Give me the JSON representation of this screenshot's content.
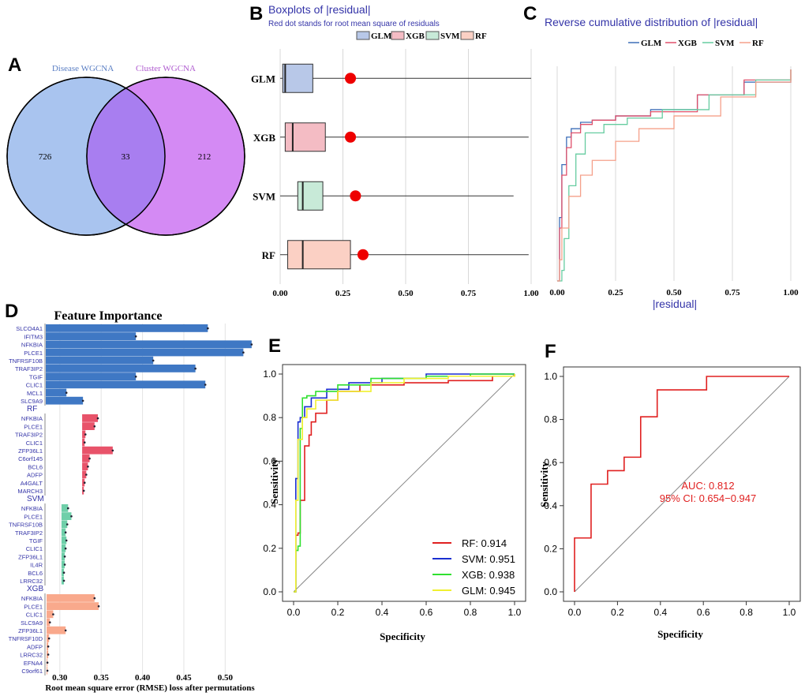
{
  "panels": {
    "A": {
      "letter": "A",
      "set1_label": "Disease WGCNA",
      "set2_label": "Cluster WGCNA",
      "only1": "726",
      "both": "33",
      "only2": "212",
      "color1": "#a9c4ef",
      "color2": "#d48af4",
      "overlap_color": "#a87ef0"
    },
    "B": {
      "letter": "B",
      "title": "Boxplots of |residual|",
      "subtitle": "Red dot stands for root mean square of residuals",
      "legend": [
        "GLM",
        "XGB",
        "SVM",
        "RF"
      ],
      "categories": [
        "GLM",
        "XGB",
        "SVM",
        "RF"
      ],
      "xticks": [
        "0.00",
        "0.25",
        "0.50",
        "0.75",
        "1.00"
      ],
      "xlim": [
        0,
        1
      ],
      "boxes": [
        {
          "name": "GLM",
          "whisk_lo": 0.0,
          "q1": 0.01,
          "median": 0.02,
          "q3": 0.13,
          "whisk_hi": 1.0,
          "rmse": 0.28,
          "fill": "#b8c8e8",
          "stroke": "#4a6aa0"
        },
        {
          "name": "XGB",
          "whisk_lo": 0.0,
          "q1": 0.02,
          "median": 0.05,
          "q3": 0.18,
          "whisk_hi": 0.99,
          "rmse": 0.28,
          "fill": "#f4bcc4",
          "stroke": "#c06070"
        },
        {
          "name": "SVM",
          "whisk_lo": 0.0,
          "q1": 0.07,
          "median": 0.09,
          "q3": 0.17,
          "whisk_hi": 0.93,
          "rmse": 0.3,
          "fill": "#c8ead8",
          "stroke": "#60a080"
        },
        {
          "name": "RF",
          "whisk_lo": 0.0,
          "q1": 0.03,
          "median": 0.09,
          "q3": 0.28,
          "whisk_hi": 0.99,
          "rmse": 0.33,
          "fill": "#fbd0c4",
          "stroke": "#c08070"
        }
      ]
    },
    "C": {
      "letter": "C",
      "title": "Reverse cumulative distribution of |residual|",
      "legend": [
        "GLM",
        "XGB",
        "SVM",
        "RF"
      ],
      "xlabel": "|residual|",
      "xticks": [
        "0.00",
        "0.25",
        "0.50",
        "0.75",
        "1.00"
      ],
      "colors": {
        "GLM": "#3d6fb8",
        "XGB": "#e0506a",
        "SVM": "#66cca0",
        "RF": "#f5a08a"
      }
    },
    "D": {
      "letter": "D",
      "title": "Feature Importance",
      "xlabel": "Root mean square error (RMSE) loss after permutations",
      "xticks": [
        "0.30",
        "0.35",
        "0.40",
        "0.45",
        "0.50"
      ],
      "xlim": [
        0.283,
        0.535
      ],
      "groups": [
        {
          "label": "",
          "color": "#3f78c4",
          "base": 0.283,
          "features": [
            "SLCO4A1",
            "IFITM3",
            "NFKBIA",
            "PLCE1",
            "TNFRSF10B",
            "TRAF3IP2",
            "TGIF",
            "CLIC1",
            "MCL1",
            "SLC9A9"
          ],
          "values": [
            0.479,
            0.392,
            0.532,
            0.522,
            0.413,
            0.464,
            0.392,
            0.476,
            0.308,
            0.328
          ]
        },
        {
          "label": "RF",
          "color": "#e8536a",
          "base": 0.327,
          "features": [
            "NFKBIA",
            "PLCE1",
            "TRAF3IP2",
            "CLIC1",
            "ZFP36L1",
            "C6orf145",
            "BCL6",
            "ADFP",
            "A4GALT",
            "MARCH3"
          ],
          "values": [
            0.346,
            0.342,
            0.331,
            0.33,
            0.364,
            0.336,
            0.334,
            0.332,
            0.33,
            0.329
          ]
        },
        {
          "label": "SVM",
          "color": "#6fcfa9",
          "base": 0.302,
          "features": [
            "NFKBIA",
            "PLCE1",
            "TNFRSF10B",
            "TRAF3IP2",
            "TGIF",
            "CLIC1",
            "ZFP36L1",
            "IL4R",
            "BCL6",
            "LRRC32"
          ],
          "values": [
            0.31,
            0.314,
            0.309,
            0.307,
            0.308,
            0.307,
            0.306,
            0.306,
            0.305,
            0.305
          ]
        },
        {
          "label": "XGB",
          "color": "#f9a98c",
          "base": 0.284,
          "features": [
            "NFKBIA",
            "PLCE1",
            "CLIC1",
            "SLC9A9",
            "ZFP36L1",
            "TNFRSF10D",
            "ADFP",
            "LRRC32",
            "EFNA4",
            "C9orf61"
          ],
          "values": [
            0.342,
            0.347,
            0.292,
            0.288,
            0.307,
            0.287,
            0.286,
            0.286,
            0.285,
            0.285
          ]
        }
      ]
    },
    "E": {
      "letter": "E",
      "ylabel": "Sensitivity",
      "xlabel": "Specificity",
      "xticks": [
        "0.0",
        "0.2",
        "0.4",
        "0.6",
        "0.8",
        "1.0"
      ],
      "yticks": [
        "0.0",
        "0.2",
        "0.4",
        "0.6",
        "0.8",
        "1.0"
      ],
      "legend": [
        {
          "label": "RF: 0.914",
          "color": "#e02020"
        },
        {
          "label": "SVM: 0.951",
          "color": "#1a2fd0"
        },
        {
          "label": "XGB: 0.938",
          "color": "#30e030"
        },
        {
          "label": "GLM: 0.945",
          "color": "#f0f030"
        }
      ]
    },
    "F": {
      "letter": "F",
      "ylabel": "Sensitivity",
      "xlabel": "Specificity",
      "xticks": [
        "0.0",
        "0.2",
        "0.4",
        "0.6",
        "0.8",
        "1.0"
      ],
      "yticks": [
        "0.0",
        "0.2",
        "0.4",
        "0.6",
        "0.8",
        "1.0"
      ],
      "auc_text": "AUC: 0.812",
      "ci_text": "95% CI: 0.654−0.947",
      "line_color": "#e02020"
    }
  },
  "chart_data": [
    {
      "type": "venn",
      "sets": [
        "Disease WGCNA",
        "Cluster WGCNA"
      ],
      "values": {
        "Disease WGCNA only": 726,
        "both": 33,
        "Cluster WGCNA only": 212
      }
    },
    {
      "type": "boxplot",
      "title": "Boxplots of |residual|",
      "categories": [
        "GLM",
        "XGB",
        "SVM",
        "RF"
      ],
      "xlim": [
        0,
        1
      ],
      "rmse": {
        "GLM": 0.28,
        "XGB": 0.28,
        "SVM": 0.3,
        "RF": 0.33
      }
    },
    {
      "type": "line",
      "title": "Reverse cumulative distribution of |residual|",
      "series": [
        {
          "name": "GLM",
          "x": [
            0.0,
            0.01,
            0.02,
            0.04,
            0.06,
            0.1,
            0.15,
            0.25,
            0.4,
            0.6,
            0.8,
            1.0
          ],
          "y": [
            0.0,
            0.3,
            0.55,
            0.68,
            0.72,
            0.75,
            0.76,
            0.78,
            0.81,
            0.88,
            0.94,
            1.0
          ]
        },
        {
          "name": "XGB",
          "x": [
            0.0,
            0.01,
            0.02,
            0.04,
            0.06,
            0.1,
            0.15,
            0.25,
            0.4,
            0.6,
            0.8,
            1.0
          ],
          "y": [
            0.0,
            0.25,
            0.5,
            0.63,
            0.7,
            0.74,
            0.76,
            0.78,
            0.8,
            0.88,
            0.95,
            1.0
          ]
        },
        {
          "name": "SVM",
          "x": [
            0.0,
            0.02,
            0.03,
            0.05,
            0.08,
            0.12,
            0.2,
            0.3,
            0.45,
            0.65,
            0.85,
            1.0
          ],
          "y": [
            0.0,
            0.05,
            0.2,
            0.45,
            0.6,
            0.7,
            0.74,
            0.77,
            0.81,
            0.88,
            0.95,
            1.0
          ]
        },
        {
          "name": "RF",
          "x": [
            0.0,
            0.01,
            0.02,
            0.05,
            0.1,
            0.15,
            0.25,
            0.35,
            0.5,
            0.7,
            0.85,
            1.0
          ],
          "y": [
            0.0,
            0.1,
            0.25,
            0.4,
            0.5,
            0.57,
            0.66,
            0.72,
            0.78,
            0.87,
            0.94,
            1.0
          ]
        }
      ]
    },
    {
      "type": "bar",
      "title": "Feature Importance",
      "xlabel": "Root mean square error (RMSE) loss after permutations",
      "groups": [
        "",
        "RF",
        "SVM",
        "XGB"
      ]
    },
    {
      "type": "line",
      "xlabel": "Specificity",
      "ylabel": "Sensitivity",
      "series": [
        {
          "name": "RF: 0.914",
          "x": [
            0,
            0.01,
            0.02,
            0.03,
            0.05,
            0.07,
            0.08,
            0.1,
            0.15,
            0.2,
            0.3,
            0.5,
            0.7,
            0.9,
            1.0
          ],
          "y": [
            0,
            0.26,
            0.27,
            0.42,
            0.67,
            0.72,
            0.78,
            0.82,
            0.88,
            0.92,
            0.95,
            0.96,
            0.97,
            0.99,
            1.0
          ]
        },
        {
          "name": "SVM: 0.951",
          "x": [
            0,
            0.01,
            0.02,
            0.03,
            0.05,
            0.08,
            0.15,
            0.25,
            0.4,
            0.6,
            0.8,
            1.0
          ],
          "y": [
            0,
            0.52,
            0.78,
            0.8,
            0.85,
            0.89,
            0.93,
            0.96,
            0.98,
            1.0,
            1.0,
            1.0
          ]
        },
        {
          "name": "XGB: 0.938",
          "x": [
            0,
            0.01,
            0.02,
            0.03,
            0.04,
            0.06,
            0.1,
            0.2,
            0.35,
            0.6,
            0.8,
            1.0
          ],
          "y": [
            0,
            0.19,
            0.21,
            0.75,
            0.89,
            0.9,
            0.92,
            0.95,
            0.98,
            0.99,
            1.0,
            1.0
          ]
        },
        {
          "name": "GLM: 0.945",
          "x": [
            0,
            0.01,
            0.02,
            0.04,
            0.06,
            0.1,
            0.2,
            0.35,
            0.5,
            0.7,
            0.9,
            1.0
          ],
          "y": [
            0,
            0.42,
            0.7,
            0.8,
            0.84,
            0.88,
            0.92,
            0.96,
            0.98,
            0.99,
            0.99,
            1.0
          ]
        }
      ]
    },
    {
      "type": "line",
      "xlabel": "Specificity",
      "ylabel": "Sensitivity",
      "auc": 0.812,
      "ci": [
        0.654,
        0.947
      ],
      "series": [
        {
          "name": "ROC",
          "x": [
            0,
            0,
            0.077,
            0.077,
            0.154,
            0.154,
            0.231,
            0.231,
            0.308,
            0.308,
            0.385,
            0.385,
            0.615,
            0.615,
            1.0
          ],
          "y": [
            0,
            0.25,
            0.25,
            0.5,
            0.5,
            0.5625,
            0.5625,
            0.625,
            0.625,
            0.8125,
            0.8125,
            0.9375,
            0.9375,
            1.0,
            1.0
          ]
        }
      ]
    }
  ]
}
